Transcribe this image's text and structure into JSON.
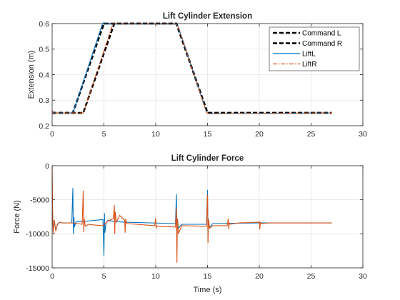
{
  "chart_data": [
    {
      "type": "line",
      "title": "Lift Cylinder Extension",
      "xlabel": "",
      "ylabel": "Extension (m)",
      "xlim": [
        0,
        30
      ],
      "ylim": [
        0.2,
        0.6
      ],
      "xticks": [
        0,
        5,
        10,
        15,
        20,
        25,
        30
      ],
      "yticks": [
        0.2,
        0.3,
        0.4,
        0.5,
        0.6
      ],
      "xtick_labels": [
        "0",
        "5",
        "10",
        "15",
        "20",
        "25",
        "30"
      ],
      "ytick_labels": [
        "0.2",
        "0.3",
        "0.4",
        "0.5",
        "0.6"
      ],
      "grid": true,
      "legend_position": "top-right",
      "series": [
        {
          "name": "Command L",
          "color": "#000000",
          "style": "dashed-thick",
          "x": [
            0,
            2,
            5,
            12,
            15,
            27
          ],
          "y": [
            0.25,
            0.25,
            0.6,
            0.6,
            0.25,
            0.25
          ]
        },
        {
          "name": "Command R",
          "color": "#000000",
          "style": "dashed-thick",
          "x": [
            0,
            3,
            6,
            12,
            15,
            27
          ],
          "y": [
            0.25,
            0.25,
            0.6,
            0.6,
            0.25,
            0.25
          ]
        },
        {
          "name": "LiftL",
          "color": "#0072BD",
          "style": "solid",
          "x": [
            0,
            0.1,
            0.2,
            0.3,
            2.0,
            2.1,
            4.85,
            5.0,
            5.2,
            12.0,
            12.2,
            14.9,
            15.1,
            27
          ],
          "y": [
            0.26,
            0.245,
            0.255,
            0.25,
            0.25,
            0.262,
            0.598,
            0.604,
            0.598,
            0.598,
            0.585,
            0.252,
            0.247,
            0.25
          ]
        },
        {
          "name": "LiftR",
          "color": "#D95319",
          "style": "dashdot",
          "x": [
            0,
            0.1,
            0.2,
            0.3,
            3.0,
            3.1,
            5.85,
            6.0,
            6.2,
            12.0,
            12.2,
            14.9,
            15.1,
            27
          ],
          "y": [
            0.26,
            0.245,
            0.255,
            0.25,
            0.25,
            0.262,
            0.598,
            0.604,
            0.598,
            0.598,
            0.585,
            0.252,
            0.247,
            0.25
          ]
        }
      ]
    },
    {
      "type": "line",
      "title": "Lift Cylinder Force",
      "xlabel": "Time (s)",
      "ylabel": "Force (N)",
      "xlim": [
        0,
        30
      ],
      "ylim": [
        -15000,
        0
      ],
      "xticks": [
        0,
        5,
        10,
        15,
        20,
        25,
        30
      ],
      "yticks": [
        -15000,
        -10000,
        -5000,
        0
      ],
      "xtick_labels": [
        "0",
        "5",
        "10",
        "15",
        "20",
        "25",
        "30"
      ],
      "ytick_labels": [
        "-15000",
        "-10000",
        "-5000",
        "0"
      ],
      "grid": true,
      "series": [
        {
          "name": "LiftL",
          "color": "#0072BD",
          "style": "solid",
          "x": [
            0,
            0.05,
            0.1,
            0.2,
            0.35,
            0.5,
            0.7,
            1.0,
            1.9,
            2.0,
            2.05,
            2.1,
            2.15,
            2.3,
            2.5,
            3.0,
            4.9,
            5.0,
            5.05,
            5.1,
            5.2,
            5.4,
            6.0,
            7.0,
            11.9,
            12.0,
            12.05,
            12.1,
            12.2,
            12.5,
            14.9,
            15.0,
            15.05,
            15.1,
            15.2,
            15.5,
            20.0,
            27
          ],
          "y": [
            -8400,
            -7000,
            -9700,
            -8000,
            -9500,
            -8700,
            -8300,
            -8400,
            -8400,
            -3300,
            -10000,
            -7600,
            -9000,
            -8300,
            -8200,
            -8200,
            -7900,
            -13200,
            -7000,
            -9800,
            -8400,
            -8000,
            -8200,
            -8300,
            -8500,
            -4200,
            -11300,
            -7800,
            -9200,
            -8600,
            -8600,
            -3600,
            -10000,
            -7800,
            -9100,
            -8500,
            -8400,
            -8400
          ]
        },
        {
          "name": "LiftR",
          "color": "#D95319",
          "style": "solid",
          "x": [
            0,
            0.05,
            0.1,
            0.2,
            0.35,
            0.5,
            0.7,
            1.0,
            2.0,
            2.9,
            3.0,
            3.05,
            3.1,
            3.2,
            3.5,
            4.0,
            4.9,
            5.0,
            5.5,
            5.9,
            6.0,
            6.05,
            6.1,
            6.2,
            6.5,
            6.9,
            7.0,
            7.05,
            7.1,
            7.2,
            9.9,
            10.0,
            10.05,
            10.1,
            10.2,
            11.9,
            12.0,
            12.05,
            12.1,
            12.2,
            12.5,
            14.9,
            15.0,
            15.05,
            15.1,
            15.2,
            15.5,
            16.9,
            17.0,
            17.05,
            17.1,
            17.2,
            18.0,
            19.9,
            20.0,
            20.05,
            20.1,
            20.2,
            21.0,
            27
          ],
          "y": [
            0,
            -6800,
            -9900,
            -8000,
            -9600,
            -8600,
            -8300,
            -8400,
            -8400,
            -8600,
            -3700,
            -9700,
            -7800,
            -8900,
            -8600,
            -8700,
            -8800,
            -8600,
            -8000,
            -7800,
            -5800,
            -10000,
            -6800,
            -8300,
            -7300,
            -7800,
            -8000,
            -9800,
            -7800,
            -8500,
            -8800,
            -7700,
            -9200,
            -8800,
            -8900,
            -9000,
            -6200,
            -14200,
            -7800,
            -10000,
            -8800,
            -8900,
            -4300,
            -11300,
            -7900,
            -9200,
            -8800,
            -8800,
            -7800,
            -9300,
            -8400,
            -8600,
            -8400,
            -8300,
            -8200,
            -9300,
            -8300,
            -8500,
            -8400,
            -8400
          ]
        }
      ]
    }
  ]
}
